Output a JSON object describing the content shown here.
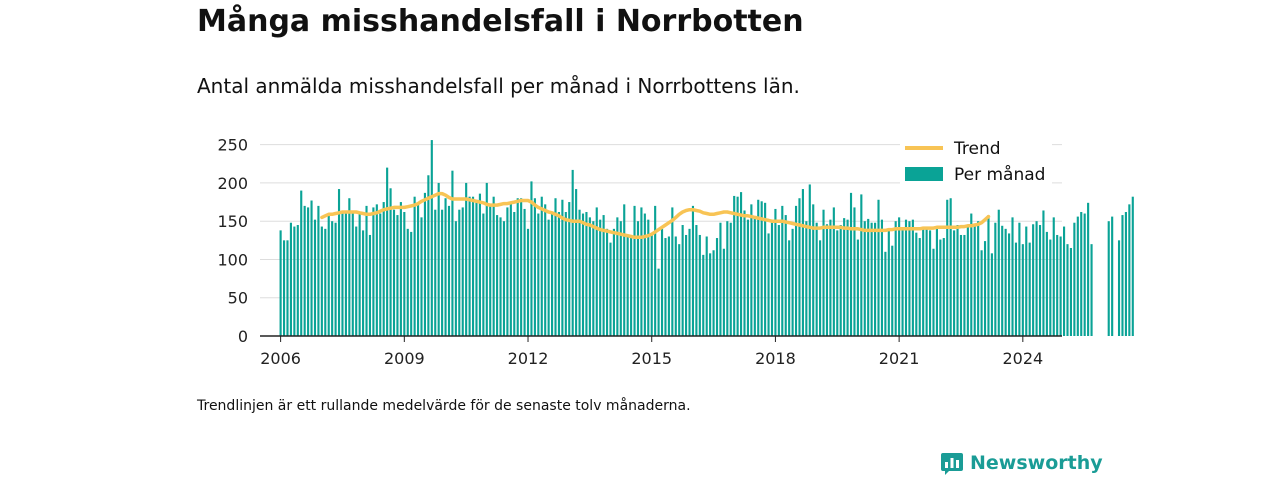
{
  "title": "Många misshandelsfall i Norrbotten",
  "subtitle": "Antal anmälda misshandelsfall per månad i Norrbottens län.",
  "footnote": "Trendlinjen är ett rullande medelvärde för de senaste tolv månaderna.",
  "brand": "Newsworthy",
  "colors": {
    "bar": "#0aa396",
    "trend": "#f8c455",
    "grid": "#dddddd",
    "brand": "#1a9c96"
  },
  "chart_data": {
    "type": "bar",
    "xlabel": "",
    "ylabel": "",
    "ylim": [
      0,
      260
    ],
    "xlim": [
      2005.5,
      2024.95
    ],
    "yticks": [
      0,
      50,
      100,
      150,
      200,
      250
    ],
    "xticks": [
      2006,
      2009,
      2012,
      2015,
      2018,
      2021,
      2024
    ],
    "legend": {
      "position": "top-right",
      "entries": [
        "Trend",
        "Per månad"
      ]
    },
    "grid": true,
    "start": "2006-01",
    "series": [
      {
        "name": "Per månad",
        "kind": "bar",
        "values": [
          138,
          125,
          125,
          148,
          143,
          145,
          190,
          170,
          168,
          177,
          152,
          170,
          143,
          140,
          158,
          150,
          148,
          192,
          160,
          163,
          180,
          162,
          143,
          160,
          138,
          170,
          132,
          168,
          172,
          160,
          175,
          220,
          193,
          165,
          158,
          175,
          162,
          140,
          136,
          182,
          174,
          155,
          187,
          210,
          256,
          165,
          200,
          165,
          180,
          170,
          216,
          150,
          165,
          168,
          200,
          182,
          182,
          178,
          186,
          160,
          200,
          172,
          182,
          158,
          155,
          150,
          168,
          175,
          162,
          180,
          180,
          166,
          140,
          202,
          180,
          160,
          182,
          172,
          152,
          160,
          180,
          162,
          178,
          162,
          175,
          217,
          192,
          165,
          160,
          162,
          155,
          150,
          168,
          152,
          158,
          140,
          122,
          140,
          155,
          150,
          172,
          132,
          130,
          170,
          150,
          168,
          160,
          152,
          132,
          170,
          88,
          140,
          128,
          130,
          168,
          130,
          120,
          145,
          132,
          140,
          170,
          145,
          132,
          106,
          130,
          108,
          112,
          128,
          148,
          114,
          150,
          148,
          183,
          182,
          188,
          164,
          152,
          172,
          156,
          178,
          176,
          174,
          134,
          148,
          166,
          145,
          170,
          158,
          125,
          140,
          170,
          180,
          192,
          150,
          198,
          172,
          148,
          125,
          165,
          146,
          152,
          168,
          138,
          145,
          154,
          152,
          187,
          168,
          126,
          185,
          150,
          153,
          148,
          148,
          178,
          152,
          110,
          138,
          118,
          150,
          155,
          142,
          152,
          150,
          152,
          135,
          128,
          140,
          142,
          138,
          114,
          142,
          126,
          128,
          178,
          180,
          138,
          145,
          132,
          132,
          144,
          160,
          145,
          150,
          112,
          124,
          158,
          108,
          148,
          165,
          144,
          140,
          134,
          155,
          122,
          148,
          120,
          143,
          122,
          146,
          150,
          145,
          164,
          136,
          126,
          155,
          132,
          130,
          143,
          120,
          115,
          148,
          156,
          162,
          160,
          174,
          120,
          0,
          0,
          0,
          0,
          150,
          156,
          0,
          125,
          158,
          162,
          172,
          182
        ]
      },
      {
        "name": "Trend",
        "kind": "line",
        "start_index": 12,
        "values": [
          155,
          157,
          159,
          159,
          160,
          161,
          162,
          162,
          162,
          162,
          162,
          161,
          160,
          159,
          159,
          160,
          161,
          163,
          165,
          166,
          167,
          168,
          168,
          168,
          168,
          169,
          170,
          171,
          173,
          176,
          178,
          180,
          182,
          184,
          186,
          186,
          184,
          181,
          179,
          179,
          179,
          179,
          179,
          178,
          177,
          176,
          175,
          174,
          172,
          171,
          171,
          171,
          172,
          173,
          173,
          174,
          175,
          176,
          177,
          177,
          177,
          175,
          171,
          168,
          166,
          164,
          162,
          161,
          159,
          157,
          154,
          152,
          151,
          150,
          150,
          150,
          148,
          146,
          145,
          143,
          141,
          139,
          138,
          137,
          136,
          135,
          134,
          133,
          132,
          131,
          130,
          129,
          129,
          129,
          130,
          131,
          133,
          136,
          139,
          142,
          145,
          148,
          151,
          155,
          159,
          162,
          164,
          165,
          165,
          164,
          163,
          161,
          160,
          159,
          159,
          160,
          161,
          162,
          162,
          161,
          160,
          159,
          158,
          157,
          157,
          156,
          155,
          154,
          153,
          152,
          151,
          150,
          150,
          150,
          150,
          149,
          148,
          147,
          146,
          145,
          144,
          143,
          142,
          141,
          141,
          141,
          142,
          142,
          142,
          142,
          142,
          142,
          141,
          141,
          140,
          140,
          140,
          139,
          138,
          138,
          138,
          138,
          138,
          138,
          138,
          139,
          139,
          140,
          140,
          140,
          140,
          140,
          140,
          140,
          140,
          141,
          141,
          141,
          141,
          142,
          142,
          142,
          142,
          142,
          142,
          142,
          143,
          143,
          144,
          144,
          145,
          146,
          148,
          152,
          156
        ]
      }
    ]
  }
}
